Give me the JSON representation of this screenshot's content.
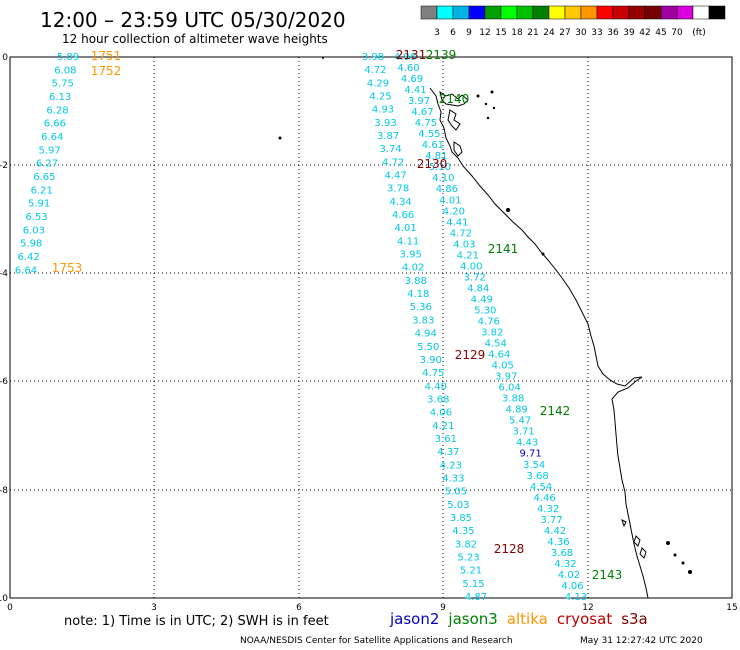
{
  "title": "12:00 – 23:59 UTC 05/30/2020",
  "subtitle": "12 hour collection of altimeter wave heights",
  "legend": {
    "colors": [
      "#808080",
      "#00ffff",
      "#00b4e6",
      "#0000ff",
      "#00a000",
      "#00ff00",
      "#00c000",
      "#008000",
      "#ffff00",
      "#ffc800",
      "#ff9600",
      "#ff0000",
      "#c80000",
      "#960000",
      "#780000",
      "#a000a0",
      "#dc00dc",
      "#ffffff",
      "#000000"
    ],
    "labels": [
      "3",
      "6",
      "9",
      "12",
      "15",
      "18",
      "21",
      "24",
      "27",
      "30",
      "33",
      "36",
      "39",
      "42",
      "45",
      "70",
      "(ft)"
    ]
  },
  "axes": {
    "x_ticks": [
      "0",
      "3",
      "6",
      "9",
      "12",
      "15"
    ],
    "y_ticks": [
      "0",
      "-2",
      "-4",
      "-6",
      "-8",
      "-10"
    ]
  },
  "note": "note: 1) Time is in UTC; 2) SWH is in feet",
  "satellites": [
    {
      "name": "jason2",
      "color": "#0000c8"
    },
    {
      "name": "jason3",
      "color": "#008000"
    },
    {
      "name": "altika",
      "color": "#ff9600"
    },
    {
      "name": "cryosat",
      "color": "#c00000"
    },
    {
      "name": "s3a",
      "color": "#800000"
    }
  ],
  "footer": {
    "credit": "NOAA/NESDIS Center for Satellite Applications and Research",
    "timestamp": "May 31 12:27:42 UTC 2020"
  },
  "tracks": [
    {
      "id": "left",
      "color": "#00c8e6",
      "x0": 68,
      "x1": 26,
      "values": [
        "5.89",
        "6.08",
        "5.75",
        "6.13",
        "6.28",
        "6.66",
        "6.64",
        "5.97",
        "6.27",
        "6.65",
        "6.21",
        "5.91",
        "6.53",
        "6.03",
        "5.98",
        "6.42",
        "6.64"
      ]
    },
    {
      "id": "t2131",
      "color": "#00c8e6",
      "x0": 373,
      "x1": 476,
      "values": [
        "3.98",
        "4.72",
        "4.29",
        "4.25",
        "4.93",
        "3.93",
        "3.87",
        "3.74",
        "4.72",
        "4.47",
        "3.78",
        "4.34",
        "4.66",
        "4.01",
        "4.11",
        "3.95",
        "4.02",
        "3.88",
        "4.18",
        "5.36",
        "3.83",
        "4.94",
        "5.50",
        "3.90",
        "4.75",
        "4.40",
        "3.68",
        "4.06",
        "4.21",
        "3.61",
        "4.37",
        "4.23",
        "4.33",
        "5.05",
        "5.03",
        "3.85",
        "4.35",
        "3.82",
        "5.23",
        "5.21",
        "5.15",
        "4.87"
      ]
    },
    {
      "id": "t2139",
      "color": "#00c8e6",
      "x0": 405,
      "x1": 576,
      "values": [
        "4.96",
        "4.60",
        "4.69",
        "4.41",
        "3.97",
        "4.67",
        "4.75",
        "4.55",
        "4.61",
        "4.81",
        "5.10",
        "4.10",
        "4.86",
        "4.01",
        "4.20",
        "4.41",
        "4.72",
        "4.03",
        "4.21",
        "4.00",
        "3.72",
        "4.84",
        "4.49",
        "5.30",
        "4.76",
        "3.82",
        "4.54",
        "4.64",
        "4.05",
        "3.97",
        "6.04",
        "3.88",
        "4.89",
        "5.47",
        "3.71",
        "4.43",
        "9.71",
        "3.54",
        "3.68",
        "4.54",
        "4.46",
        "4.32",
        "3.77",
        "4.42",
        "4.36",
        "3.68",
        "4.32",
        "4.02",
        "4.06",
        "4.13"
      ]
    }
  ],
  "passes": [
    {
      "label": "1751",
      "color": "#ff9600"
    },
    {
      "label": "1752",
      "color": "#ff9600"
    },
    {
      "label": "1753",
      "color": "#ff9600"
    },
    {
      "label": "2131",
      "color": "#800000"
    },
    {
      "label": "2139",
      "color": "#008000"
    },
    {
      "label": "2140",
      "color": "#008000"
    },
    {
      "label": "2130",
      "color": "#800000"
    },
    {
      "label": "2141",
      "color": "#008000"
    },
    {
      "label": "2129",
      "color": "#800000"
    },
    {
      "label": "2142",
      "color": "#008000"
    },
    {
      "label": "2128",
      "color": "#800000"
    },
    {
      "label": "2143",
      "color": "#008000"
    }
  ]
}
